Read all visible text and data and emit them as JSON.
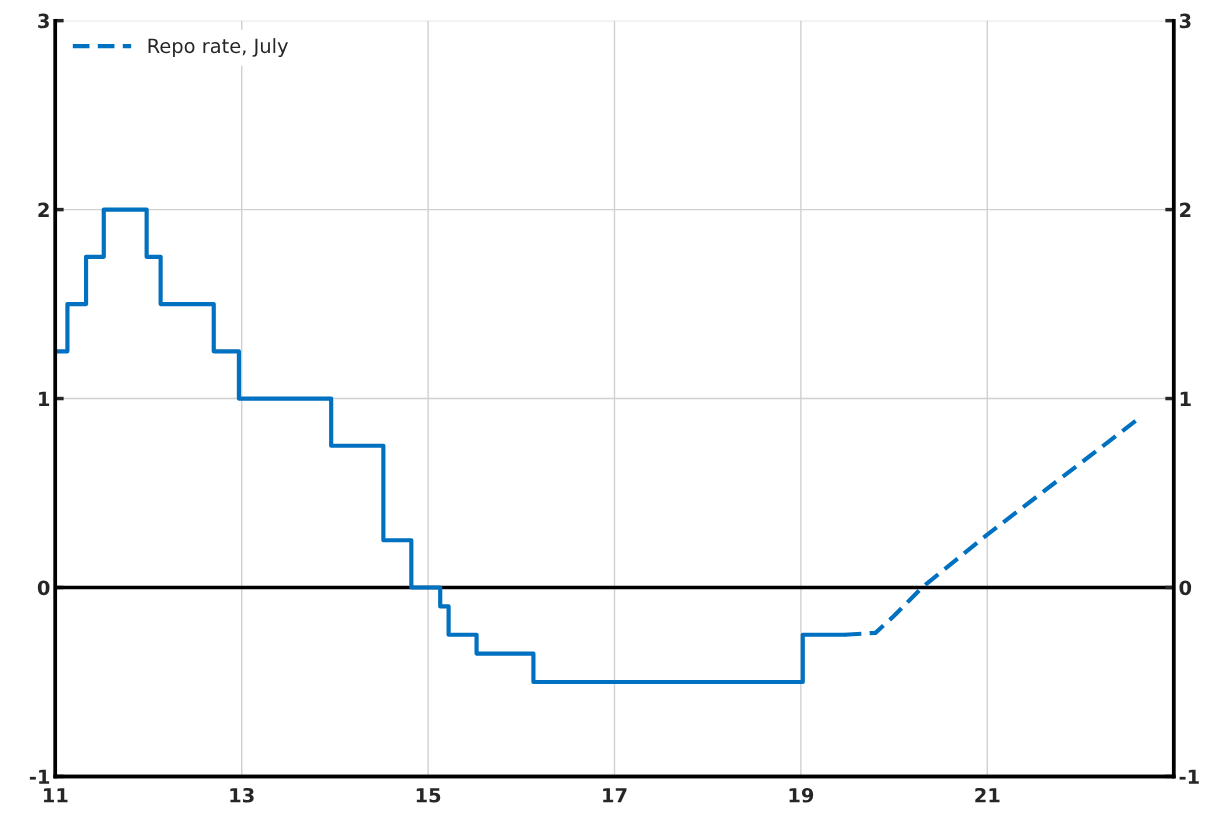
{
  "chart_data": {
    "type": "step",
    "xlim": [
      11,
      23
    ],
    "xticks": [
      11,
      13,
      15,
      17,
      19,
      21
    ],
    "ylim": [
      -1,
      3
    ],
    "yticks": [
      -1,
      0,
      1,
      2,
      3
    ],
    "y2lim": [
      -1,
      3
    ],
    "y2ticks": [
      -1,
      0,
      1,
      2,
      3
    ],
    "grid": true,
    "legend": "top left",
    "ref_lines": [
      {
        "axis": "y",
        "value": 0,
        "color": "#000000",
        "line_style": "solid"
      }
    ],
    "series": [
      {
        "color": "#0070c0",
        "line_style": "solid",
        "x": [
          11,
          11.13,
          11.33,
          11.52,
          11.98,
          12.13,
          12.7,
          12.97,
          13.96,
          14.52,
          14.82,
          15.13,
          15.22,
          15.52,
          16.13,
          19.02,
          19.47
        ],
        "values": [
          1.25,
          1.5,
          1.75,
          2,
          1.75,
          1.5,
          1.25,
          1,
          0.75,
          0.25,
          0,
          -0.1,
          -0.25,
          -0.35,
          -0.5,
          -0.25,
          -0.25
        ]
      },
      {
        "type": "line",
        "name": "Repo rate, July",
        "color": "#0070c0",
        "line_style": "dashed",
        "x": [
          19.47,
          19.8,
          20.0,
          20.3,
          21.0,
          22.64
        ],
        "values": [
          -0.25,
          -0.24,
          -0.15,
          0.0,
          0.28,
          0.9
        ]
      }
    ]
  }
}
